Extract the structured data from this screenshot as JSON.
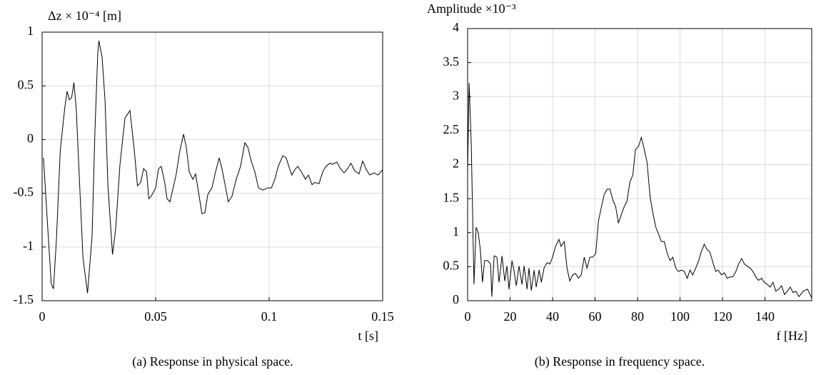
{
  "chart_data": [
    {
      "type": "line",
      "y_label": "Δz × 10⁻⁴ [m]",
      "x_label": "t [s]",
      "caption": "(a) Response in physical space.",
      "color": "#000000",
      "grid": true,
      "xlim": [
        0,
        0.15
      ],
      "ylim": [
        -1.5,
        1
      ],
      "xticks": [
        0,
        0.05,
        0.1,
        0.15
      ],
      "yticks": [
        -1.5,
        -1,
        -0.5,
        0,
        0.5,
        1
      ],
      "x": [
        0.0006,
        0.0025,
        0.004,
        0.005,
        0.0063,
        0.008,
        0.01,
        0.011,
        0.012,
        0.013,
        0.014,
        0.015,
        0.0167,
        0.018,
        0.02,
        0.022,
        0.0233,
        0.0245,
        0.025,
        0.0264,
        0.0277,
        0.029,
        0.031,
        0.0324,
        0.0343,
        0.0365,
        0.0387,
        0.0406,
        0.042,
        0.0434,
        0.0447,
        0.046,
        0.047,
        0.048,
        0.05,
        0.0513,
        0.0525,
        0.054,
        0.055,
        0.0563,
        0.0575,
        0.059,
        0.0607,
        0.0623,
        0.0635,
        0.0648,
        0.0664,
        0.0676,
        0.0692,
        0.0704,
        0.0717,
        0.073,
        0.0748,
        0.0764,
        0.078,
        0.0792,
        0.0805,
        0.082,
        0.0836,
        0.0855,
        0.0874,
        0.0893,
        0.0906,
        0.0921,
        0.0937,
        0.0953,
        0.0972,
        0.0994,
        0.101,
        0.1025,
        0.104,
        0.106,
        0.1075,
        0.109,
        0.11,
        0.1113,
        0.1126,
        0.1142,
        0.116,
        0.1173,
        0.1189,
        0.12,
        0.122,
        0.1236,
        0.125,
        0.1267,
        0.128,
        0.1298,
        0.1314,
        0.133,
        0.1346,
        0.136,
        0.1377,
        0.1396,
        0.1412,
        0.1428,
        0.1443,
        0.1462,
        0.148,
        0.15
      ],
      "values": [
        -0.17,
        -0.83,
        -1.34,
        -1.39,
        -0.93,
        -0.1,
        0.3,
        0.45,
        0.37,
        0.39,
        0.53,
        0.3,
        -0.5,
        -1.1,
        -1.43,
        -0.9,
        0.1,
        0.8,
        0.92,
        0.77,
        0.37,
        -0.43,
        -1.07,
        -0.83,
        -0.23,
        0.2,
        0.27,
        -0.1,
        -0.43,
        -0.4,
        -0.27,
        -0.3,
        -0.55,
        -0.53,
        -0.45,
        -0.27,
        -0.25,
        -0.4,
        -0.55,
        -0.58,
        -0.47,
        -0.33,
        -0.1,
        0.05,
        -0.07,
        -0.3,
        -0.37,
        -0.32,
        -0.53,
        -0.69,
        -0.68,
        -0.51,
        -0.45,
        -0.3,
        -0.17,
        -0.27,
        -0.41,
        -0.58,
        -0.53,
        -0.37,
        -0.25,
        -0.03,
        -0.07,
        -0.2,
        -0.3,
        -0.45,
        -0.47,
        -0.45,
        -0.45,
        -0.37,
        -0.25,
        -0.15,
        -0.17,
        -0.27,
        -0.33,
        -0.28,
        -0.25,
        -0.3,
        -0.37,
        -0.33,
        -0.42,
        -0.4,
        -0.41,
        -0.3,
        -0.25,
        -0.22,
        -0.23,
        -0.21,
        -0.27,
        -0.31,
        -0.27,
        -0.22,
        -0.29,
        -0.32,
        -0.2,
        -0.28,
        -0.33,
        -0.31,
        -0.33,
        -0.28
      ]
    },
    {
      "type": "line",
      "y_label": "Amplitude ×10⁻³",
      "x_label": "f [Hz]",
      "caption": "(b) Response in frequency space.",
      "color": "#000000",
      "grid": true,
      "xlim": [
        0,
        162
      ],
      "ylim": [
        0,
        4
      ],
      "xticks": [
        0,
        20,
        40,
        60,
        80,
        100,
        120,
        140
      ],
      "yticks": [
        0,
        0.5,
        1,
        1.5,
        2,
        2.5,
        3,
        3.5,
        4
      ],
      "x": [
        0,
        0.7,
        1.7,
        3,
        4,
        5,
        6,
        7,
        8,
        9.4,
        10.8,
        11.4,
        12.5,
        13.8,
        14.8,
        16.2,
        17.5,
        18.5,
        19.5,
        20.9,
        21.9,
        22.9,
        24.2,
        25.6,
        26.6,
        28,
        28.9,
        30,
        31.3,
        32.3,
        33.7,
        34.7,
        36,
        37.4,
        38.7,
        40,
        41.4,
        43,
        44,
        45.5,
        46.8,
        48.1,
        49.5,
        50.8,
        52.2,
        53.5,
        54.9,
        56.2,
        57.6,
        58.9,
        60.3,
        61.6,
        63,
        64.3,
        65.7,
        67,
        68.4,
        69.7,
        71,
        72.4,
        73.7,
        75,
        76.4,
        77.8,
        79,
        80.5,
        81.8,
        83.2,
        84.5,
        85.9,
        87.2,
        88.6,
        89.9,
        91.2,
        92.6,
        94,
        95.3,
        96.6,
        98,
        99.3,
        100.7,
        102,
        103.4,
        104.7,
        106,
        107.4,
        108.8,
        110,
        111.4,
        112.8,
        114,
        115.5,
        116.8,
        118,
        119.5,
        120.9,
        122.2,
        123.6,
        124.9,
        126.3,
        127.6,
        129,
        130.3,
        131.6,
        133,
        134.3,
        135.7,
        137,
        138.4,
        139.7,
        141.1,
        142.4,
        143.8,
        145.1,
        146.5,
        147.8,
        149.2,
        150.5,
        151.9,
        153.2,
        154.5,
        156,
        158,
        160,
        162
      ],
      "values": [
        1.9,
        3.2,
        2.32,
        0.24,
        1.08,
        1.0,
        0.75,
        0.27,
        0.59,
        0.59,
        0.54,
        0.06,
        0.66,
        0.64,
        0.27,
        0.66,
        0.29,
        0.51,
        0.17,
        0.59,
        0.43,
        0.22,
        0.51,
        0.24,
        0.51,
        0.17,
        0.48,
        0.15,
        0.45,
        0.2,
        0.45,
        0.27,
        0.48,
        0.56,
        0.54,
        0.64,
        0.8,
        0.9,
        0.8,
        0.87,
        0.48,
        0.29,
        0.38,
        0.4,
        0.33,
        0.38,
        0.64,
        0.48,
        0.64,
        0.64,
        0.69,
        1.17,
        1.38,
        1.56,
        1.64,
        1.64,
        1.48,
        1.38,
        1.14,
        1.27,
        1.38,
        1.46,
        1.74,
        1.85,
        2.22,
        2.27,
        2.4,
        2.22,
        2.03,
        1.53,
        1.29,
        1.08,
        0.98,
        0.87,
        0.87,
        0.69,
        0.59,
        0.64,
        0.48,
        0.43,
        0.45,
        0.43,
        0.33,
        0.45,
        0.38,
        0.48,
        0.59,
        0.72,
        0.83,
        0.75,
        0.72,
        0.56,
        0.43,
        0.45,
        0.38,
        0.41,
        0.33,
        0.35,
        0.35,
        0.43,
        0.54,
        0.62,
        0.54,
        0.51,
        0.48,
        0.43,
        0.35,
        0.3,
        0.33,
        0.27,
        0.24,
        0.2,
        0.27,
        0.14,
        0.17,
        0.22,
        0.09,
        0.14,
        0.2,
        0.12,
        0.14,
        0.06,
        0.14,
        0.17,
        0.04
      ]
    }
  ]
}
